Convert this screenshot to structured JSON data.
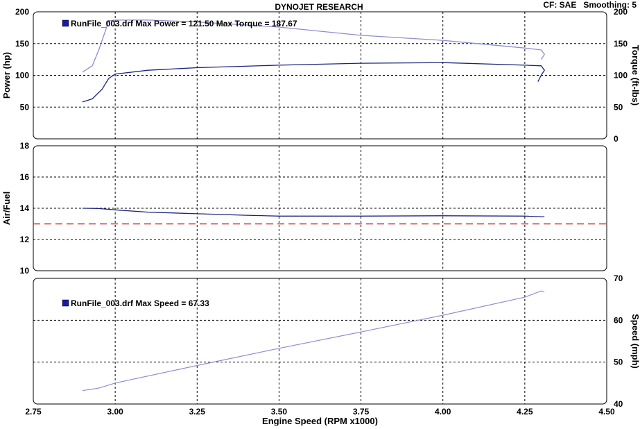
{
  "header": {
    "title": "DYNOJET RESEARCH",
    "info": "CF: SAE   Smoothing: 5"
  },
  "colors": {
    "power_line": "#1a237e",
    "torque_line": "#8c8fd0",
    "speed_line": "#8c8fd0",
    "afr_line": "#1a237e",
    "afr_target": "#d32f2f",
    "legend_icon": "#1a1aa8",
    "grid": "#000000"
  },
  "chart_data": [
    {
      "type": "line",
      "panel": "power-torque",
      "legend": "RunFile_003.drf Max Power = 121.50    Max Torque = 187.67",
      "ylabel": "Power (hp)",
      "ylabel_right": "Torque (ft-lbs)",
      "ylim": [
        0,
        200
      ],
      "ylim_right": [
        0,
        200
      ],
      "yticks": [
        0,
        50,
        100,
        150,
        200
      ],
      "yticks_left_labels": [
        "",
        "50",
        "100",
        "150",
        "200"
      ],
      "yticks_right_labels": [
        "0",
        "50",
        "100",
        "150",
        "200"
      ],
      "xlim": [
        2.75,
        4.5
      ],
      "series": [
        {
          "name": "Power",
          "axis": "left",
          "x": [
            2.9,
            2.93,
            2.96,
            2.98,
            3.0,
            3.1,
            3.25,
            3.5,
            3.75,
            4.0,
            4.25,
            4.3,
            4.31,
            4.3,
            4.29
          ],
          "y": [
            58,
            63,
            78,
            95,
            102,
            108,
            112,
            116,
            119,
            120,
            116,
            115,
            108,
            100,
            90
          ]
        },
        {
          "name": "Torque",
          "axis": "right",
          "x": [
            2.9,
            2.93,
            2.95,
            2.97,
            2.98,
            3.0,
            3.1,
            3.25,
            3.5,
            3.75,
            4.0,
            4.25,
            4.3,
            4.31,
            4.3
          ],
          "y": [
            105,
            115,
            140,
            170,
            186,
            187,
            187,
            184,
            176,
            163,
            155,
            143,
            140,
            133,
            125
          ]
        }
      ]
    },
    {
      "type": "line",
      "panel": "air-fuel",
      "ylabel": "Air/Fuel",
      "ylim": [
        10,
        18
      ],
      "yticks": [
        10,
        12,
        14,
        16,
        18
      ],
      "xlim": [
        2.75,
        4.5
      ],
      "target_afr": 13,
      "series": [
        {
          "name": "Air/Fuel",
          "x": [
            2.9,
            2.95,
            3.0,
            3.1,
            3.25,
            3.4,
            3.5,
            3.75,
            4.0,
            4.25,
            4.31
          ],
          "y": [
            14.0,
            13.98,
            13.9,
            13.75,
            13.65,
            13.55,
            13.5,
            13.5,
            13.52,
            13.5,
            13.45
          ]
        }
      ]
    },
    {
      "type": "line",
      "panel": "speed",
      "legend": "RunFile_003.drf Max Speed = 67.33",
      "ylabel_right": "Speed (mph)",
      "xlabel": "Engine Speed (RPM x1000)",
      "ylim": [
        40,
        70
      ],
      "yticks": [
        40,
        50,
        60,
        70
      ],
      "xlim": [
        2.75,
        4.5
      ],
      "xticks": [
        2.75,
        3.0,
        3.25,
        3.5,
        3.75,
        4.0,
        4.25,
        4.5
      ],
      "xtick_labels": [
        "2.75",
        "3.00",
        "3.25",
        "3.50",
        "3.75",
        "4.00",
        "4.25",
        "4.50"
      ],
      "series": [
        {
          "name": "Speed",
          "x": [
            2.9,
            2.95,
            3.0,
            3.25,
            3.5,
            3.75,
            4.0,
            4.25,
            4.3,
            4.31
          ],
          "y": [
            43.2,
            43.8,
            45.0,
            49.2,
            53.3,
            57.2,
            61.2,
            65.5,
            67.0,
            66.8
          ]
        }
      ]
    }
  ]
}
